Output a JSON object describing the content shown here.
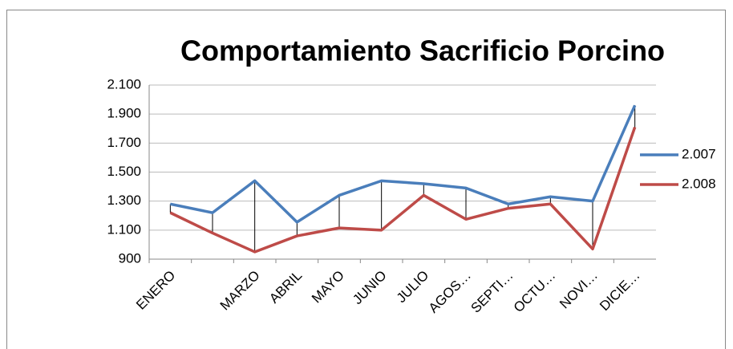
{
  "chart_data": {
    "type": "line",
    "title": "Comportamiento Sacrificio Porcino",
    "categories": [
      "ENERO",
      null,
      "MARZO",
      "ABRIL",
      "MAYO",
      "JUNIO",
      "JULIO",
      "AGOS…",
      "SEPTI…",
      "OCTU…",
      "NOVI…",
      "DICIE…"
    ],
    "series": [
      {
        "name": "2.007",
        "color": "#4a7ebb",
        "values": [
          1280,
          1220,
          1440,
          1155,
          1340,
          1440,
          1420,
          1390,
          1280,
          1330,
          1300,
          1960
        ]
      },
      {
        "name": "2.008",
        "color": "#be4b48",
        "values": [
          1220,
          1080,
          950,
          1060,
          1115,
          1100,
          1340,
          1175,
          1250,
          1280,
          970,
          1810
        ]
      }
    ],
    "ylim": [
      900,
      2100
    ],
    "yticks": [
      900,
      {
        "value": 1100,
        "label": "1.100"
      },
      {
        "value": 1300,
        "label": "1.300"
      },
      {
        "value": 1500,
        "label": "1.500"
      },
      {
        "value": 1700,
        "label": "1.700"
      },
      {
        "value": 1900,
        "label": "1.900"
      },
      {
        "value": 2100,
        "label": "2.100"
      }
    ],
    "grid": true,
    "legend": "right",
    "drop_lines": true
  }
}
